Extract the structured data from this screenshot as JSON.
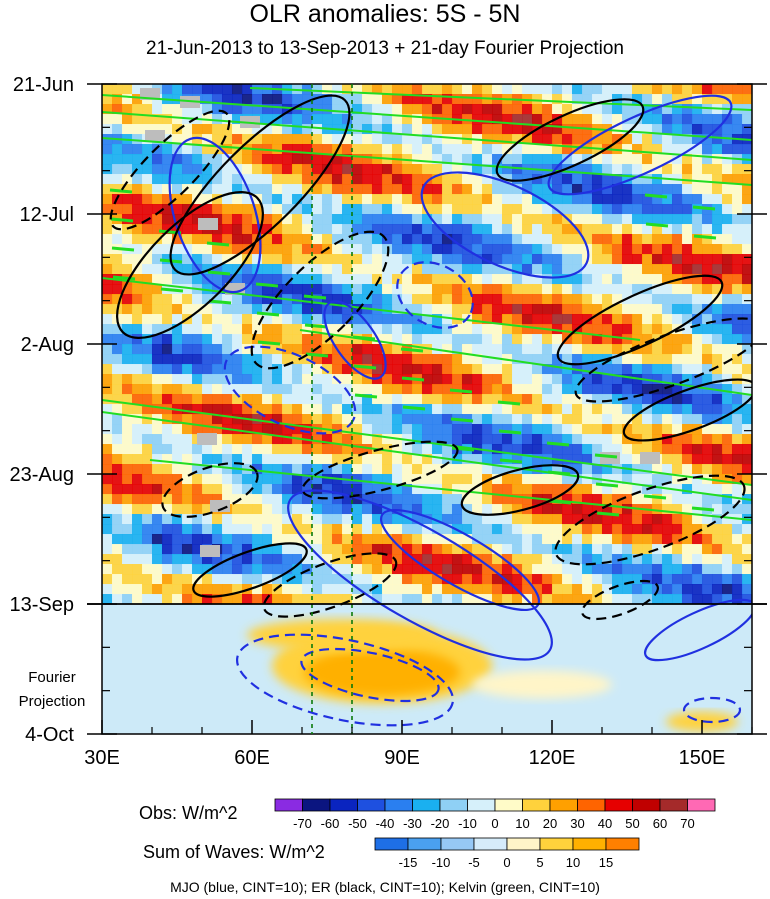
{
  "chart_data": {
    "type": "heatmap",
    "title": "OLR anomalies: 5S - 5N",
    "subtitle": "21-Jun-2013 to 13-Sep-2013 + 21-day Fourier Projection",
    "x_axis": {
      "tick_labels": [
        "30E",
        "60E",
        "90E",
        "120E",
        "150E"
      ],
      "tick_values": [
        30,
        60,
        90,
        120,
        150
      ],
      "range": [
        30,
        160
      ]
    },
    "y_axis": {
      "tick_labels": [
        "21-Jun",
        "12-Jul",
        "2-Aug",
        "23-Aug",
        "13-Sep",
        "4-Oct"
      ],
      "tick_values_days": [
        0,
        21,
        42,
        63,
        84,
        105
      ],
      "range_days": [
        0,
        105
      ],
      "projection_label": "Fourier Projection",
      "observation_end_day": 84
    },
    "reference_longitudes": [
      72,
      80
    ],
    "obs_colorbar": {
      "label": "Obs: W/m^2",
      "levels": [
        "-70",
        "-60",
        "-50",
        "-40",
        "-30",
        "-20",
        "-10",
        "0",
        "10",
        "20",
        "30",
        "40",
        "50",
        "60",
        "70"
      ],
      "colors": [
        "#8a2be2",
        "#0b1580",
        "#0a24c0",
        "#1e50e0",
        "#2a7ff0",
        "#1ab0f0",
        "#8fd0f5",
        "#d6f0fa",
        "#fffbc8",
        "#ffd23c",
        "#ffa000",
        "#ff6400",
        "#e60000",
        "#c00000",
        "#a52a2a",
        "#ff69b4"
      ]
    },
    "waves_colorbar": {
      "label": "Sum of Waves: W/m^2",
      "levels": [
        "-15",
        "-10",
        "-5",
        "0",
        "5",
        "10",
        "15"
      ],
      "colors": [
        "#1e6fe6",
        "#4aa0f0",
        "#96c8f5",
        "#d6ecfa",
        "#fff5c8",
        "#ffd23c",
        "#ffb000",
        "#ff8000"
      ]
    },
    "contour_legend": "MJO (blue, CINT=10); ER (black, CINT=10); Kelvin (green, CINT=10)",
    "series": [
      {
        "name": "MJO",
        "color": "#2030e0",
        "cint": 10
      },
      {
        "name": "ER",
        "color": "#000000",
        "cint": 10
      },
      {
        "name": "Kelvin",
        "color": "#22dd22",
        "cint": 10
      }
    ]
  }
}
